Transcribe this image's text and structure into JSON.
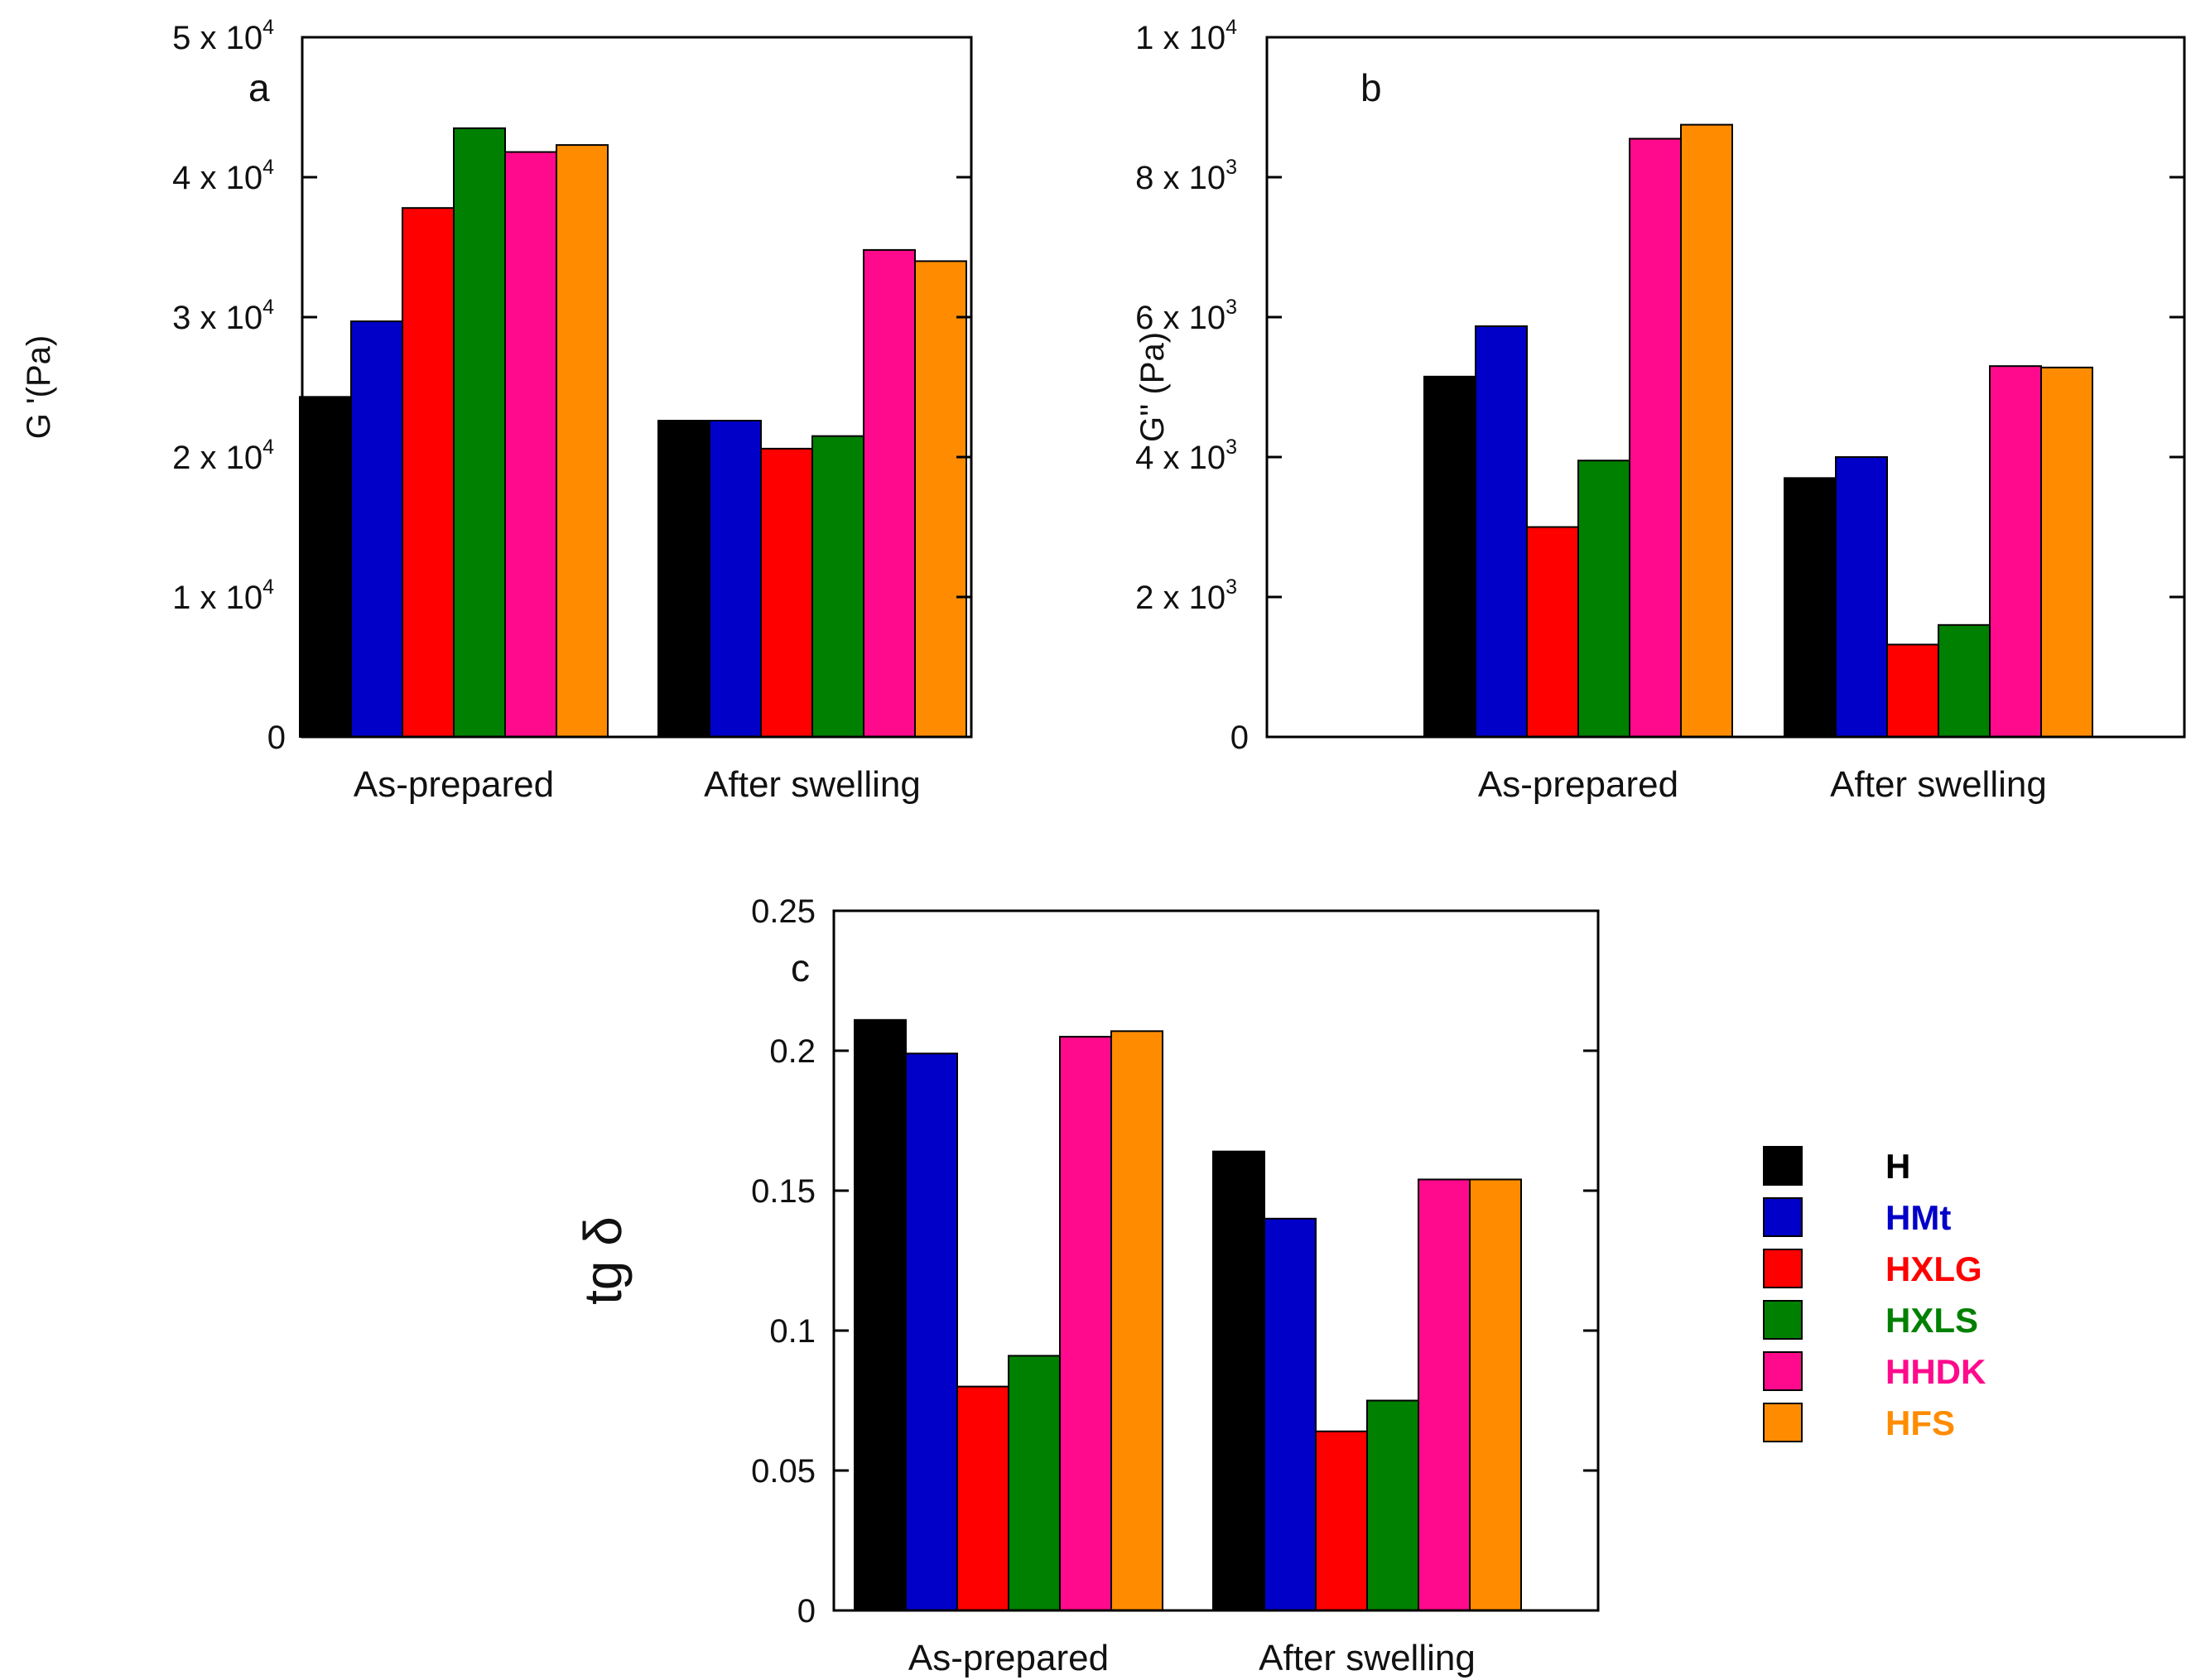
{
  "colors": {
    "H": "#000000",
    "HMt": "#0000c8",
    "HXLG": "#ff0000",
    "HXLS": "#008000",
    "HHDK": "#ff0a8c",
    "HFS": "#ff8c00"
  },
  "legend": [
    "H",
    "HMt",
    "HXLG",
    "HXLS",
    "HHDK",
    "HFS"
  ],
  "chart_data": [
    {
      "panel": "a",
      "type": "bar",
      "ylabel": "G '(Pa)",
      "ylim": [
        0,
        50000
      ],
      "yticks": [
        {
          "value": 0,
          "label": "0",
          "sup": ""
        },
        {
          "value": 10000,
          "label": "1 x 10",
          "sup": "4"
        },
        {
          "value": 20000,
          "label": "2 x 10",
          "sup": "4"
        },
        {
          "value": 30000,
          "label": "3 x 10",
          "sup": "4"
        },
        {
          "value": 40000,
          "label": "4 x 10",
          "sup": "4"
        },
        {
          "value": 50000,
          "label": "5 x 10",
          "sup": "4"
        }
      ],
      "categories": [
        "As-prepared",
        "After swelling"
      ],
      "series": [
        {
          "name": "H",
          "values": [
            24300,
            22600
          ]
        },
        {
          "name": "HMt",
          "values": [
            29700,
            22600
          ]
        },
        {
          "name": "HXLG",
          "values": [
            37800,
            20600
          ]
        },
        {
          "name": "HXLS",
          "values": [
            43500,
            21500
          ]
        },
        {
          "name": "HHDK",
          "values": [
            41800,
            34800
          ]
        },
        {
          "name": "HFS",
          "values": [
            42300,
            34000
          ]
        }
      ]
    },
    {
      "panel": "b",
      "type": "bar",
      "ylabel": "G'' (Pa)",
      "ylim": [
        0,
        10000
      ],
      "yticks": [
        {
          "value": 0,
          "label": "0",
          "sup": ""
        },
        {
          "value": 2000,
          "label": "2 x 10",
          "sup": "3"
        },
        {
          "value": 4000,
          "label": "4 x 10",
          "sup": "3"
        },
        {
          "value": 6000,
          "label": "6 x 10",
          "sup": "3"
        },
        {
          "value": 8000,
          "label": "8 x 10",
          "sup": "3"
        },
        {
          "value": 10000,
          "label": "1 x 10",
          "sup": "4"
        }
      ],
      "categories": [
        "As-prepared",
        "After swelling"
      ],
      "series": [
        {
          "name": "H",
          "values": [
            5150,
            3700
          ]
        },
        {
          "name": "HMt",
          "values": [
            5870,
            4000
          ]
        },
        {
          "name": "HXLG",
          "values": [
            3000,
            1320
          ]
        },
        {
          "name": "HXLS",
          "values": [
            3950,
            1600
          ]
        },
        {
          "name": "HHDK",
          "values": [
            8550,
            5300
          ]
        },
        {
          "name": "HFS",
          "values": [
            8750,
            5280
          ]
        }
      ]
    },
    {
      "panel": "c",
      "type": "bar",
      "ylabel": "tg δ",
      "ylim": [
        0,
        0.25
      ],
      "yticks": [
        {
          "value": 0,
          "label": "0",
          "sup": ""
        },
        {
          "value": 0.05,
          "label": "0.05",
          "sup": ""
        },
        {
          "value": 0.1,
          "label": "0.1",
          "sup": ""
        },
        {
          "value": 0.15,
          "label": "0.15",
          "sup": ""
        },
        {
          "value": 0.2,
          "label": "0.2",
          "sup": ""
        },
        {
          "value": 0.25,
          "label": "0.25",
          "sup": ""
        }
      ],
      "categories": [
        "As-prepared",
        "After swelling"
      ],
      "series": [
        {
          "name": "H",
          "values": [
            0.211,
            0.164
          ]
        },
        {
          "name": "HMt",
          "values": [
            0.199,
            0.14
          ]
        },
        {
          "name": "HXLG",
          "values": [
            0.08,
            0.064
          ]
        },
        {
          "name": "HXLS",
          "values": [
            0.091,
            0.075
          ]
        },
        {
          "name": "HHDK",
          "values": [
            0.205,
            0.154
          ]
        },
        {
          "name": "HFS",
          "values": [
            0.207,
            0.154
          ]
        }
      ]
    }
  ]
}
